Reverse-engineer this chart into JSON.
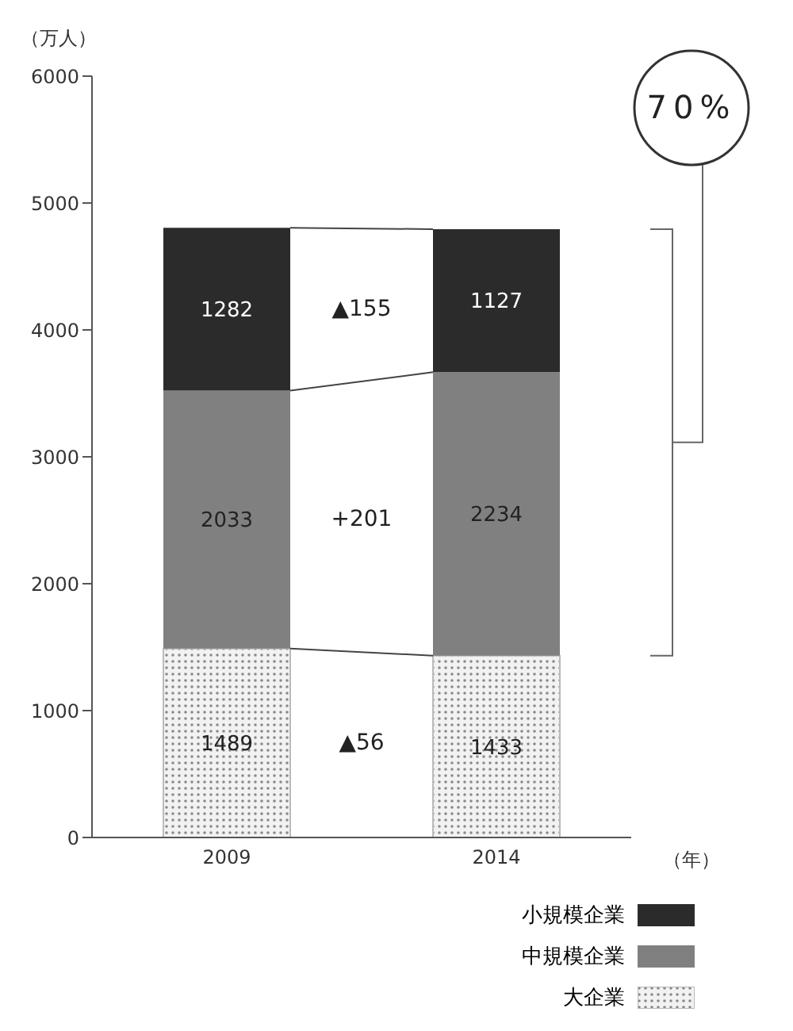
{
  "chart_data": {
    "type": "bar",
    "stacked": true,
    "categories": [
      "2009",
      "2014"
    ],
    "series": [
      {
        "name": "大企業",
        "color": "#c8c8c8",
        "values": [
          1489,
          1433
        ]
      },
      {
        "name": "中規模企業",
        "color": "#808080",
        "values": [
          2033,
          2234
        ]
      },
      {
        "name": "小規模企業",
        "color": "#2b2b2b",
        "values": [
          1282,
          1127
        ]
      }
    ],
    "ylim": [
      0,
      6000
    ],
    "yticks": [
      0,
      1000,
      2000,
      3000,
      4000,
      5000,
      6000
    ],
    "ylabel": "（万人）",
    "xlabel": "（年）",
    "data_labels": true,
    "grid": false,
    "legend": "bottom right",
    "annotations": [
      "▲56",
      "+201",
      "▲155",
      "70%"
    ]
  }
}
